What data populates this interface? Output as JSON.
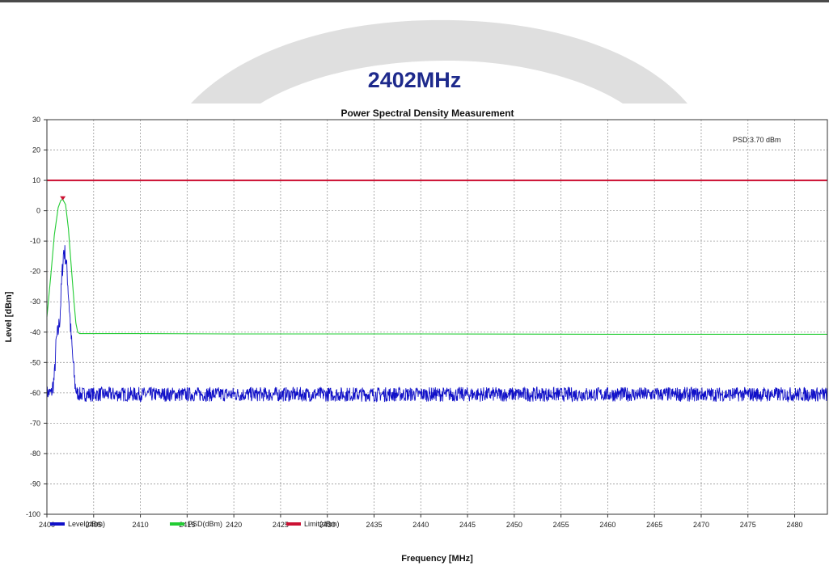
{
  "header": {
    "frequency_label": "2402MHz"
  },
  "chart_data": {
    "type": "line",
    "title": "Power Spectral Density Measurement",
    "xlabel": "Frequency [MHz]",
    "ylabel": "Level [dBm]",
    "xlim": [
      2400,
      2483.5
    ],
    "ylim": [
      -100,
      30
    ],
    "xticks": [
      2400,
      2405,
      2410,
      2415,
      2420,
      2425,
      2430,
      2435,
      2440,
      2445,
      2450,
      2455,
      2460,
      2465,
      2470,
      2475,
      2480
    ],
    "yticks": [
      30,
      20,
      10,
      0,
      -10,
      -20,
      -30,
      -40,
      -50,
      -60,
      -70,
      -80,
      -90,
      -100
    ],
    "grid": true,
    "legend_position": "bottom",
    "annotation": "PSD:3.70 dBm",
    "series": [
      {
        "name": "Level(dBm)",
        "color": "#1010c8",
        "noise_floor": -60.5,
        "x": [
          2400.0,
          2400.5,
          2400.8,
          2401.0,
          2401.2,
          2401.4,
          2401.6,
          2401.8,
          2402.0,
          2402.2,
          2402.4,
          2402.6,
          2402.8,
          2403.0,
          2403.2,
          2403.5,
          2483.5
        ],
        "values": [
          -60,
          -60,
          -55,
          -43,
          -40,
          -35,
          -22,
          -13,
          -15,
          -22,
          -32,
          -42,
          -50,
          -57,
          -60,
          -60.5,
          -60.5
        ]
      },
      {
        "name": "PSD(dBm)",
        "color": "#22cc33",
        "x": [
          2400.0,
          2400.4,
          2400.8,
          2401.2,
          2401.5,
          2401.7,
          2402.0,
          2402.3,
          2402.6,
          2402.9,
          2403.1,
          2403.3,
          2403.5,
          2404.0,
          2410.0,
          2420.0,
          2440.0,
          2460.0,
          2483.5
        ],
        "values": [
          -35,
          -22,
          -8,
          1,
          3.5,
          3.7,
          2,
          -6,
          -18,
          -30,
          -37,
          -40,
          -40.5,
          -40.5,
          -40.5,
          -40.6,
          -40.6,
          -40.7,
          -40.7
        ]
      },
      {
        "name": "Limit(dBm)",
        "color": "#cc1133",
        "x": [
          2400,
          2483.5
        ],
        "values": [
          10,
          10
        ]
      }
    ],
    "marker": {
      "x": 2401.7,
      "y": 3.7,
      "color": "#cc1133"
    }
  }
}
